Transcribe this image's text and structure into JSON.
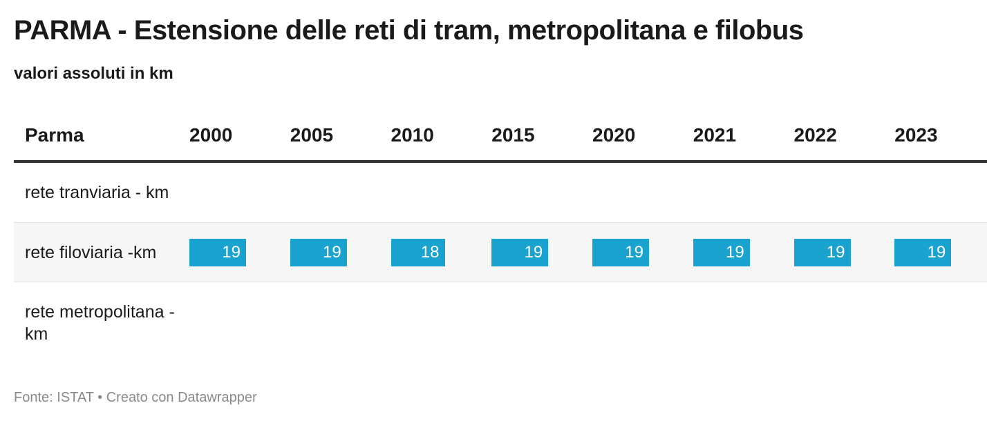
{
  "title": "PARMA - Estensione delle reti di tram, metropolitana e filobus",
  "subtitle": "valori assoluti in km",
  "source": "Fonte: ISTAT • Creato con Datawrapper",
  "colors": {
    "bar": "#1ba3cf",
    "value_text": "#ffffff"
  },
  "chart_data": {
    "type": "table",
    "row_header": "Parma",
    "columns": [
      "2000",
      "2005",
      "2010",
      "2015",
      "2020",
      "2021",
      "2022",
      "2023"
    ],
    "rows": [
      {
        "label": "rete tranviaria - km",
        "values": [
          null,
          null,
          null,
          null,
          null,
          null,
          null,
          null
        ]
      },
      {
        "label": "rete filoviaria -km",
        "values": [
          19,
          19,
          18,
          19,
          19,
          19,
          19,
          19
        ]
      },
      {
        "label": "rete metropolitana - km",
        "values": [
          null,
          null,
          null,
          null,
          null,
          null,
          null,
          null
        ]
      }
    ],
    "bar_max": 19
  }
}
